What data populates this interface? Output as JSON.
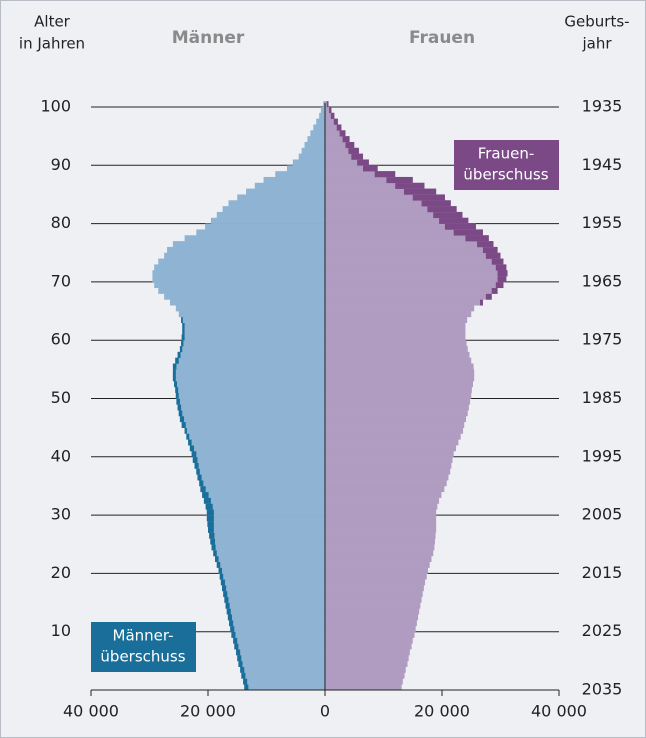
{
  "chart_data": {
    "type": "pyramid",
    "y_label": [
      "Alter",
      "in Jahren"
    ],
    "y2_label": [
      "Geburts-",
      "jahr"
    ],
    "categories": [
      0,
      1,
      2,
      3,
      4,
      5,
      6,
      7,
      8,
      9,
      10,
      11,
      12,
      13,
      14,
      15,
      16,
      17,
      18,
      19,
      20,
      21,
      22,
      23,
      24,
      25,
      26,
      27,
      28,
      29,
      30,
      31,
      32,
      33,
      34,
      35,
      36,
      37,
      38,
      39,
      40,
      41,
      42,
      43,
      44,
      45,
      46,
      47,
      48,
      49,
      50,
      51,
      52,
      53,
      54,
      55,
      56,
      57,
      58,
      59,
      60,
      61,
      62,
      63,
      64,
      65,
      66,
      67,
      68,
      69,
      70,
      71,
      72,
      73,
      74,
      75,
      76,
      77,
      78,
      79,
      80,
      81,
      82,
      83,
      84,
      85,
      86,
      87,
      88,
      89,
      90,
      91,
      92,
      93,
      94,
      95,
      96,
      97,
      98,
      99,
      100
    ],
    "series": [
      {
        "name": "Männer",
        "side": "left",
        "color": "#8fb4d3",
        "surplus_color": "#1a6e9a",
        "values": [
          13800,
          14000,
          14300,
          14500,
          14800,
          15000,
          15200,
          15500,
          15700,
          16000,
          16200,
          16400,
          16600,
          16800,
          17000,
          17200,
          17400,
          17600,
          17800,
          18000,
          18200,
          18500,
          18800,
          19100,
          19400,
          19600,
          19800,
          20000,
          20100,
          20200,
          20200,
          20400,
          20700,
          21000,
          21300,
          21500,
          21800,
          22000,
          22300,
          22600,
          22800,
          23100,
          23400,
          23700,
          24000,
          24500,
          24800,
          25000,
          25200,
          25400,
          25500,
          25600,
          25800,
          26000,
          26000,
          26000,
          25600,
          25200,
          24800,
          24600,
          24500,
          24400,
          24400,
          24600,
          25000,
          25500,
          26500,
          27500,
          28500,
          29200,
          29500,
          29500,
          29200,
          28500,
          27500,
          27000,
          26000,
          24000,
          22000,
          20500,
          19500,
          18500,
          17500,
          16500,
          15000,
          13500,
          12000,
          10500,
          8500,
          6500,
          5500,
          4500,
          4000,
          3500,
          3000,
          2500,
          2000,
          1500,
          1000,
          700,
          300
        ]
      },
      {
        "name": "Frauen",
        "side": "right",
        "color": "#b09cc0",
        "surplus_color": "#7b4a86",
        "values": [
          13100,
          13300,
          13600,
          13800,
          14100,
          14300,
          14500,
          14800,
          15000,
          15300,
          15500,
          15700,
          15900,
          16100,
          16300,
          16500,
          16700,
          16900,
          17100,
          17400,
          17600,
          17900,
          18200,
          18500,
          18700,
          18800,
          18900,
          19000,
          19000,
          19000,
          19000,
          19200,
          19500,
          19900,
          20400,
          20800,
          21100,
          21400,
          21600,
          21800,
          22000,
          22400,
          22800,
          23200,
          23600,
          23800,
          24100,
          24400,
          24600,
          24800,
          25000,
          25100,
          25300,
          25500,
          25500,
          25400,
          25000,
          24700,
          24400,
          24200,
          24000,
          24000,
          24000,
          24300,
          25000,
          25500,
          27000,
          28500,
          29500,
          30500,
          31000,
          31200,
          31000,
          30500,
          30000,
          29500,
          28800,
          28000,
          27000,
          25800,
          24500,
          23500,
          22500,
          21500,
          20500,
          19000,
          17000,
          15000,
          12000,
          9000,
          7500,
          6500,
          5800,
          5000,
          4200,
          3500,
          2800,
          2200,
          1600,
          1100,
          600
        ]
      }
    ],
    "annotations": [
      [
        "Frauen-",
        "überschuss"
      ],
      [
        "Männer-",
        "überschuss"
      ]
    ],
    "xlim": [
      -40000,
      40000
    ],
    "xticks": [
      {
        "value": -40000,
        "label": "40 000"
      },
      {
        "value": -20000,
        "label": "20 000"
      },
      0,
      {
        "value": 20000,
        "label": "20 000"
      },
      {
        "value": 40000,
        "label": "40 000"
      }
    ],
    "ylim": [
      0,
      100
    ],
    "yticks": [
      10,
      20,
      30,
      40,
      50,
      60,
      70,
      80,
      90,
      100
    ],
    "y2ticks": [
      {
        "value": 0,
        "label": "2035"
      },
      {
        "value": 10,
        "label": "2025"
      },
      {
        "value": 20,
        "label": "2015"
      },
      {
        "value": 30,
        "label": "2005"
      },
      {
        "value": 40,
        "label": "1995"
      },
      {
        "value": 50,
        "label": "1985"
      },
      {
        "value": 60,
        "label": "1975"
      },
      {
        "value": 70,
        "label": "1965"
      },
      {
        "value": 80,
        "label": "1955"
      },
      {
        "value": 90,
        "label": "1945"
      },
      {
        "value": 100,
        "label": "1935"
      }
    ],
    "grid": true
  }
}
